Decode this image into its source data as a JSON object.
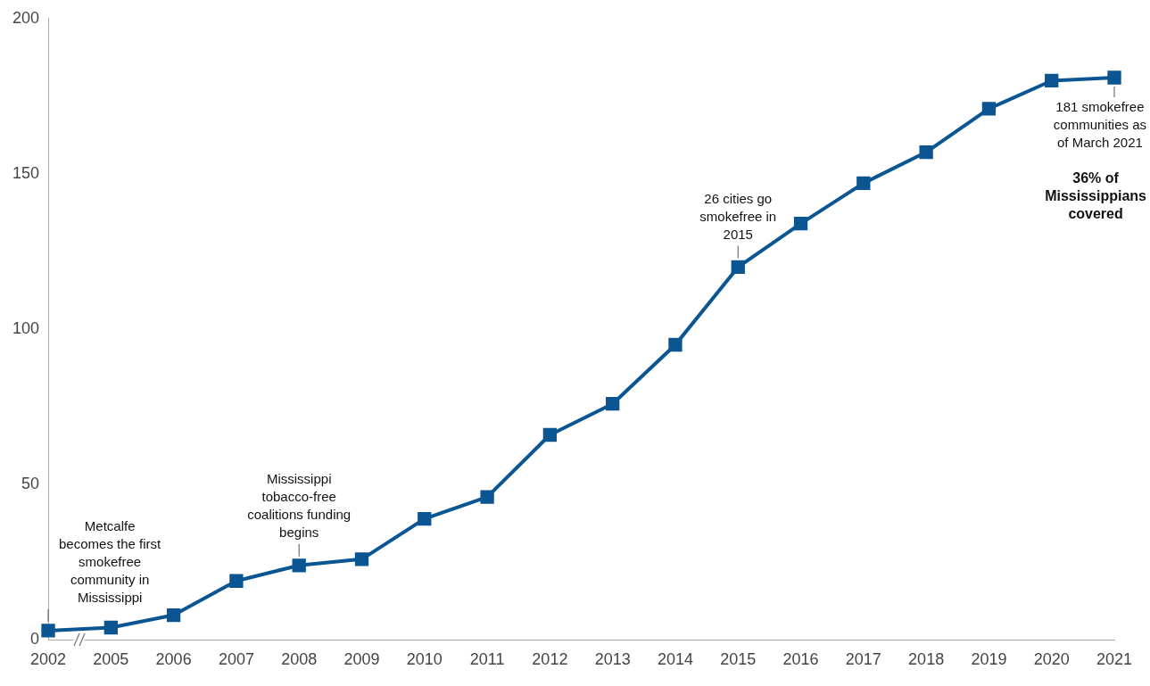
{
  "chart_data": {
    "type": "line",
    "categories": [
      "2002",
      "2005",
      "2006",
      "2007",
      "2008",
      "2009",
      "2010",
      "2011",
      "2012",
      "2013",
      "2014",
      "2015",
      "2016",
      "2017",
      "2018",
      "2019",
      "2020",
      "2021"
    ],
    "series": [
      {
        "color": "#0a5592",
        "values": [
          3,
          4,
          8,
          19,
          24,
          26,
          39,
          46,
          66,
          76,
          95,
          120,
          134,
          147,
          157,
          171,
          180,
          181
        ]
      }
    ],
    "ylim": [
      0,
      200
    ],
    "yticks": [
      0,
      50,
      100,
      150,
      200
    ],
    "grid": false,
    "legend": false,
    "marker": "square",
    "line_style": "solid",
    "annotations": [
      {
        "text": "Metcalfe becomes the first smokefree community in Mississippi",
        "x": "2002",
        "y": 3
      },
      {
        "text": "Mississippi tobacco-free coalitions funding begins",
        "x": "2008",
        "y": 24
      },
      {
        "text": "26 cities go smokefree in 2015",
        "x": "2015",
        "y": 120
      },
      {
        "text": "181 smokefree communities as of March 2021",
        "x": "2021",
        "y": 181
      },
      "36% of Mississippians covered"
    ]
  }
}
